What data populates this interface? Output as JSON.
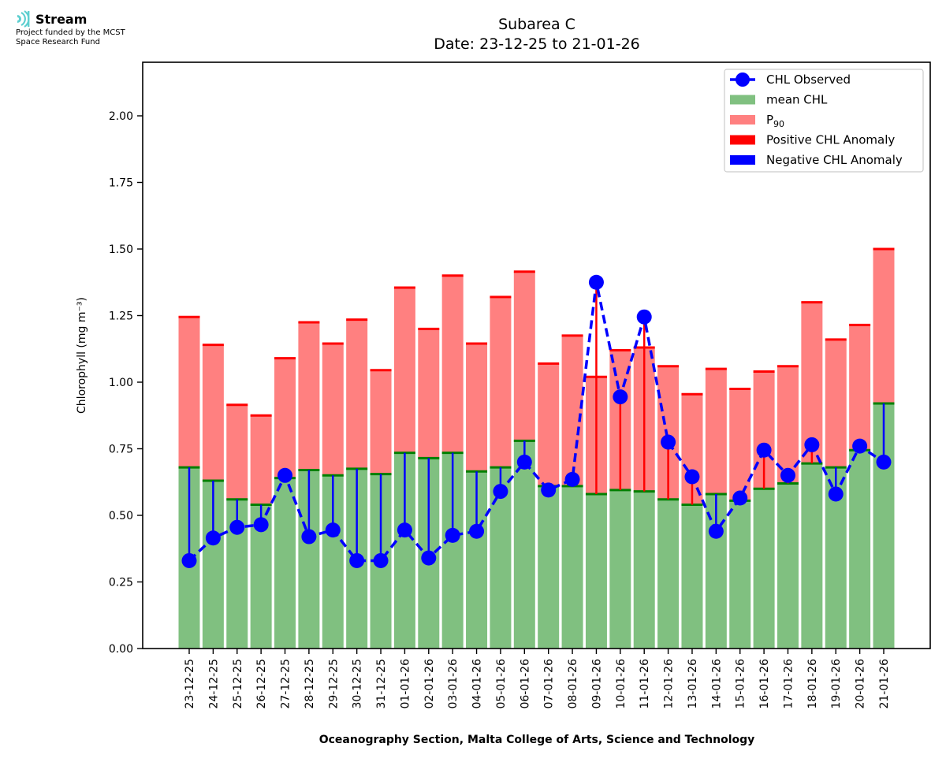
{
  "branding": {
    "name": "Stream",
    "line1": "Project funded by the MCST",
    "line2": "Space Research Fund",
    "icon": "stream-waves-icon"
  },
  "colors": {
    "mean": "#80c080",
    "mean_edge": "#008000",
    "p90": "#ff8080",
    "p90_edge": "#ff0000",
    "positive": "#ff0000",
    "negative": "#0000ff",
    "observed": "#0000ff",
    "logo": "#5ecfd0"
  },
  "chart_data": {
    "type": "bar",
    "title": "Subarea C",
    "subtitle": "Date: 23-12-25 to 21-01-26",
    "xlabel": "Oceanography Section, Malta College of Arts, Science and Technology",
    "ylabel": "Chlorophyll (mg m⁻³)",
    "ylim": [
      0,
      2.2
    ],
    "yticks": [
      "0.00",
      "0.25",
      "0.50",
      "0.75",
      "1.00",
      "1.25",
      "1.50",
      "1.75",
      "2.00"
    ],
    "grid": false,
    "legend_position": "top-right",
    "legend": [
      {
        "label": "CHL Observed",
        "kind": "line-marker",
        "color": "#0000ff"
      },
      {
        "label": "mean CHL",
        "kind": "patch",
        "color": "#80c080"
      },
      {
        "label": "P",
        "sub": "90",
        "kind": "patch",
        "color": "#ff8080"
      },
      {
        "label": "Positive CHL Anomaly",
        "kind": "patch",
        "color": "#ff0000"
      },
      {
        "label": "Negative CHL Anomaly",
        "kind": "patch",
        "color": "#0000ff"
      }
    ],
    "categories": [
      "23-12-25",
      "24-12-25",
      "25-12-25",
      "26-12-25",
      "27-12-25",
      "28-12-25",
      "29-12-25",
      "30-12-25",
      "31-12-25",
      "01-01-26",
      "02-01-26",
      "03-01-26",
      "04-01-26",
      "05-01-26",
      "06-01-26",
      "07-01-26",
      "08-01-26",
      "09-01-26",
      "10-01-26",
      "11-01-26",
      "12-01-26",
      "13-01-26",
      "14-01-26",
      "15-01-26",
      "16-01-26",
      "17-01-26",
      "18-01-26",
      "19-01-26",
      "20-01-26",
      "21-01-26"
    ],
    "series": [
      {
        "name": "mean CHL",
        "values": [
          0.68,
          0.63,
          0.56,
          0.54,
          0.64,
          0.67,
          0.65,
          0.675,
          0.655,
          0.735,
          0.715,
          0.735,
          0.665,
          0.68,
          0.78,
          0.61,
          0.61,
          0.58,
          0.595,
          0.59,
          0.56,
          0.54,
          0.58,
          0.555,
          0.6,
          0.62,
          0.695,
          0.68,
          0.745,
          0.92
        ]
      },
      {
        "name": "P90",
        "values": [
          1.245,
          1.14,
          0.915,
          0.875,
          1.09,
          1.225,
          1.145,
          1.235,
          1.045,
          1.355,
          1.2,
          1.4,
          1.145,
          1.32,
          1.415,
          1.07,
          1.175,
          1.02,
          1.12,
          1.13,
          1.06,
          0.955,
          1.05,
          0.975,
          1.04,
          1.06,
          1.3,
          1.16,
          1.215,
          1.5
        ]
      },
      {
        "name": "CHL Observed",
        "values": [
          0.33,
          0.415,
          0.455,
          0.465,
          0.65,
          0.42,
          0.445,
          0.33,
          0.33,
          0.445,
          0.34,
          0.425,
          0.44,
          0.59,
          0.7,
          0.595,
          0.635,
          1.375,
          0.945,
          1.245,
          0.775,
          0.645,
          0.44,
          0.565,
          0.745,
          0.65,
          0.765,
          0.58,
          0.76,
          0.7
        ]
      }
    ]
  }
}
